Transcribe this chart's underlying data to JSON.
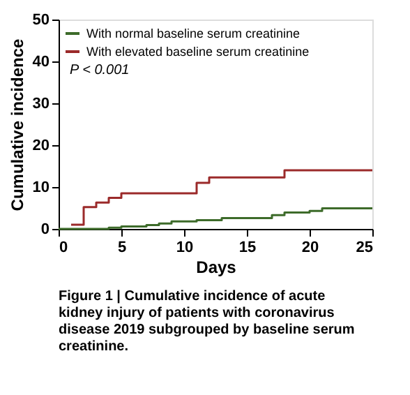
{
  "chart_data": {
    "type": "step",
    "xlabel": "Days",
    "ylabel": "Cumulative incidence",
    "xlim": [
      0,
      25
    ],
    "ylim": [
      0,
      50
    ],
    "xticks": [
      0,
      5,
      10,
      15,
      20,
      25
    ],
    "yticks": [
      0,
      10,
      20,
      30,
      40,
      50
    ],
    "legend": "top left",
    "grid": false,
    "series": [
      {
        "name": "With normal baseline serum creatinine",
        "color": "#3d6b2a",
        "x": [
          0,
          4,
          5,
          7,
          8,
          9,
          11,
          13,
          17,
          18,
          20,
          21,
          25
        ],
        "values": [
          0,
          0.3,
          0.6,
          0.9,
          1.3,
          1.8,
          2.1,
          2.6,
          3.3,
          3.9,
          4.3,
          4.9,
          4.9
        ]
      },
      {
        "name": "With elevated baseline serum creatinine",
        "color": "#9b2a2a",
        "x": [
          1,
          2,
          3,
          4,
          5,
          11,
          12,
          18,
          25
        ],
        "values": [
          1,
          5.2,
          6.3,
          7.4,
          8.5,
          11,
          12.3,
          14,
          14
        ]
      }
    ],
    "annotations": [
      "P < 0.001",
      "Figure 1 | Cumulative incidence of acute kidney injury of patients with coronavirus disease 2019 subgrouped by baseline serum creatinine."
    ]
  }
}
